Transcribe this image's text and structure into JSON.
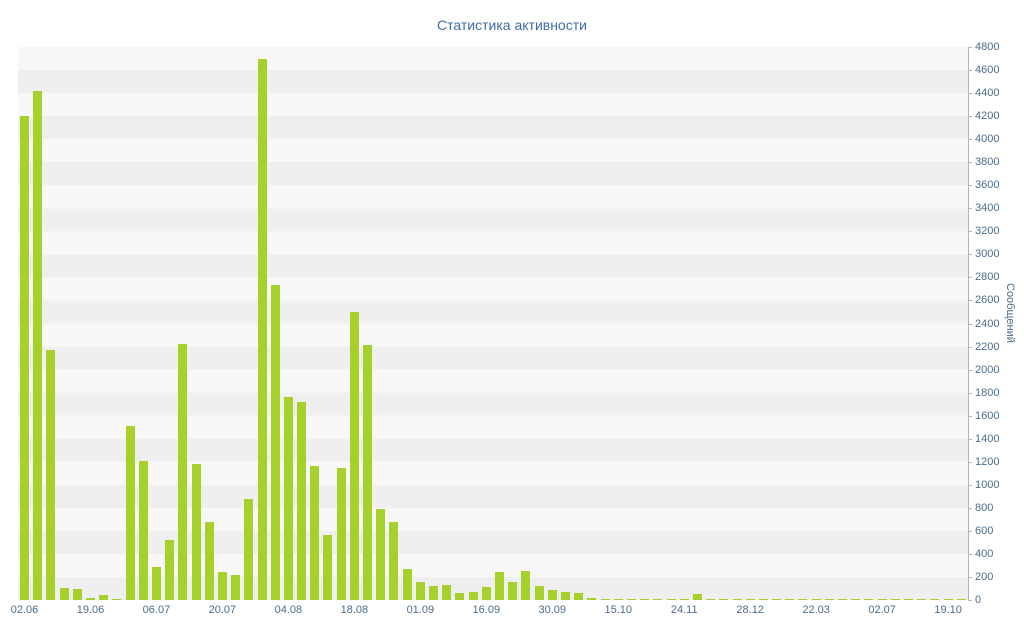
{
  "title": "Статистика активности",
  "colors": {
    "bar_fill": "#a6d02c",
    "bar_border": "#8fba1c",
    "axis_text": "#4a6c8e",
    "title_text": "#3e6da6",
    "stripe_light": "#f8f8f8",
    "stripe_dark": "#efefef",
    "axis_line": "#aab6c2"
  },
  "chart_data": {
    "type": "bar",
    "title": "Статистика активности",
    "ylabel": "Сообщений",
    "xlabel": "",
    "ylim": [
      0,
      4800
    ],
    "ytick_step": 200,
    "grid": "horizontal-stripes",
    "legend": "none",
    "x_tick_labels": [
      "02.06",
      "19.06",
      "06.07",
      "20.07",
      "04.08",
      "18.08",
      "01.09",
      "16.09",
      "30.09",
      "15.10",
      "24.11",
      "28.12",
      "22.03",
      "02.07",
      "19.10"
    ],
    "x_tick_every": 5,
    "values": [
      4200,
      4420,
      2170,
      105,
      95,
      20,
      45,
      5,
      1510,
      1210,
      290,
      520,
      2220,
      1180,
      680,
      240,
      215,
      880,
      4700,
      2730,
      1760,
      1720,
      1160,
      560,
      1150,
      2500,
      2210,
      790,
      680,
      270,
      160,
      120,
      130,
      60,
      70,
      110,
      240,
      160,
      250,
      120,
      85,
      70,
      60,
      20,
      10,
      5,
      5,
      5,
      3,
      3,
      8,
      50,
      5,
      3,
      3,
      5,
      3,
      3,
      3,
      3,
      5,
      3,
      3,
      3,
      3,
      3,
      3,
      5,
      3,
      3,
      3,
      3
    ]
  }
}
